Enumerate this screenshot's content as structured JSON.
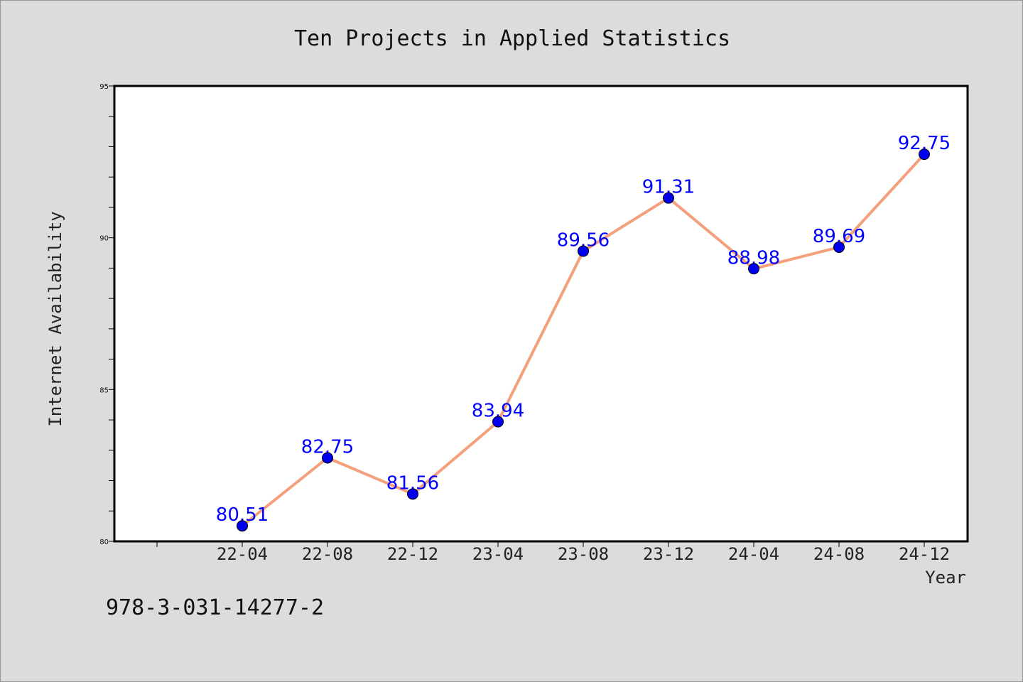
{
  "chart_data": {
    "type": "line",
    "title": "Ten Projects in Applied Statistics",
    "xlabel": "Year",
    "ylabel": "Internet Availability",
    "categories": [
      "22-04",
      "22-08",
      "22-12",
      "23-04",
      "23-08",
      "23-12",
      "24-04",
      "24-08",
      "24-12"
    ],
    "series": [
      {
        "values": [
          80.51,
          82.75,
          81.56,
          83.94,
          89.56,
          91.31,
          88.98,
          89.69,
          92.75
        ],
        "data_labels": [
          "80.51",
          "82.75",
          "81.56",
          "83.94",
          "89.56",
          "91.31",
          "88.98",
          "89.69",
          "92.75"
        ],
        "line_color": "#f4a07c",
        "marker_color": "#0000ee"
      }
    ],
    "ylim": [
      80,
      95
    ],
    "y_major_ticks": [
      "80",
      "85",
      "90",
      "95"
    ],
    "grid": false,
    "legend": "none"
  },
  "footer": {
    "isbn": "978-3-031-14277-2"
  },
  "colors": {
    "background": "#dcdcdc",
    "plot_area": "#ffffff",
    "data_label": "#0000ff"
  }
}
